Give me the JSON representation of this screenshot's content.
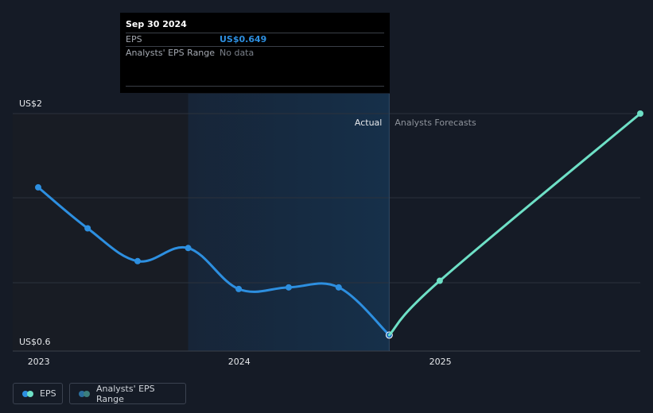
{
  "chart_data": {
    "type": "line",
    "x_domain": [
      "2022-12-31",
      "2025-12-31"
    ],
    "y_domain": [
      0.6,
      2
    ],
    "y_tick_labels": [
      "US$2",
      "US$0.6"
    ],
    "x_tick_labels": [
      "2023",
      "2024",
      "2025"
    ],
    "divider_date": "2024-09-30",
    "highlight_band": [
      "2023-09-30",
      "2024-09-30"
    ],
    "region_labels": {
      "actual": "Actual",
      "forecast": "Analysts Forecasts"
    },
    "series": [
      {
        "name": "EPS",
        "color": "#2d8fe0",
        "points": [
          {
            "x": "2022-12-31",
            "y": 1.55
          },
          {
            "x": "2023-03-31",
            "y": 1.3
          },
          {
            "x": "2023-06-30",
            "y": 1.1
          },
          {
            "x": "2023-09-30",
            "y": 1.18
          },
          {
            "x": "2023-12-31",
            "y": 0.93
          },
          {
            "x": "2024-03-31",
            "y": 0.94
          },
          {
            "x": "2024-06-30",
            "y": 0.94
          },
          {
            "x": "2024-09-30",
            "y": 0.649
          }
        ]
      },
      {
        "name": "Analysts Forecasts",
        "color": "#6ee0c6",
        "points": [
          {
            "x": "2024-09-30",
            "y": 0.649
          },
          {
            "x": "2024-12-31",
            "y": 0.98
          },
          {
            "x": "2025-12-31",
            "y": 2.0
          }
        ]
      }
    ]
  },
  "tooltip": {
    "date": "Sep 30 2024",
    "rows": [
      {
        "label": "EPS",
        "value": "US$0.649",
        "color": "#2d8fe0"
      },
      {
        "label": "Analysts' EPS Range",
        "value": "No data",
        "color": "#7a8089"
      }
    ]
  },
  "legend": {
    "items": [
      {
        "label": "EPS",
        "colors": [
          "#2d8fe0",
          "#6ee0c6"
        ]
      },
      {
        "label": "Analysts' EPS Range",
        "colors": [
          "#2a6f9e",
          "#3c7f7c"
        ]
      }
    ]
  }
}
